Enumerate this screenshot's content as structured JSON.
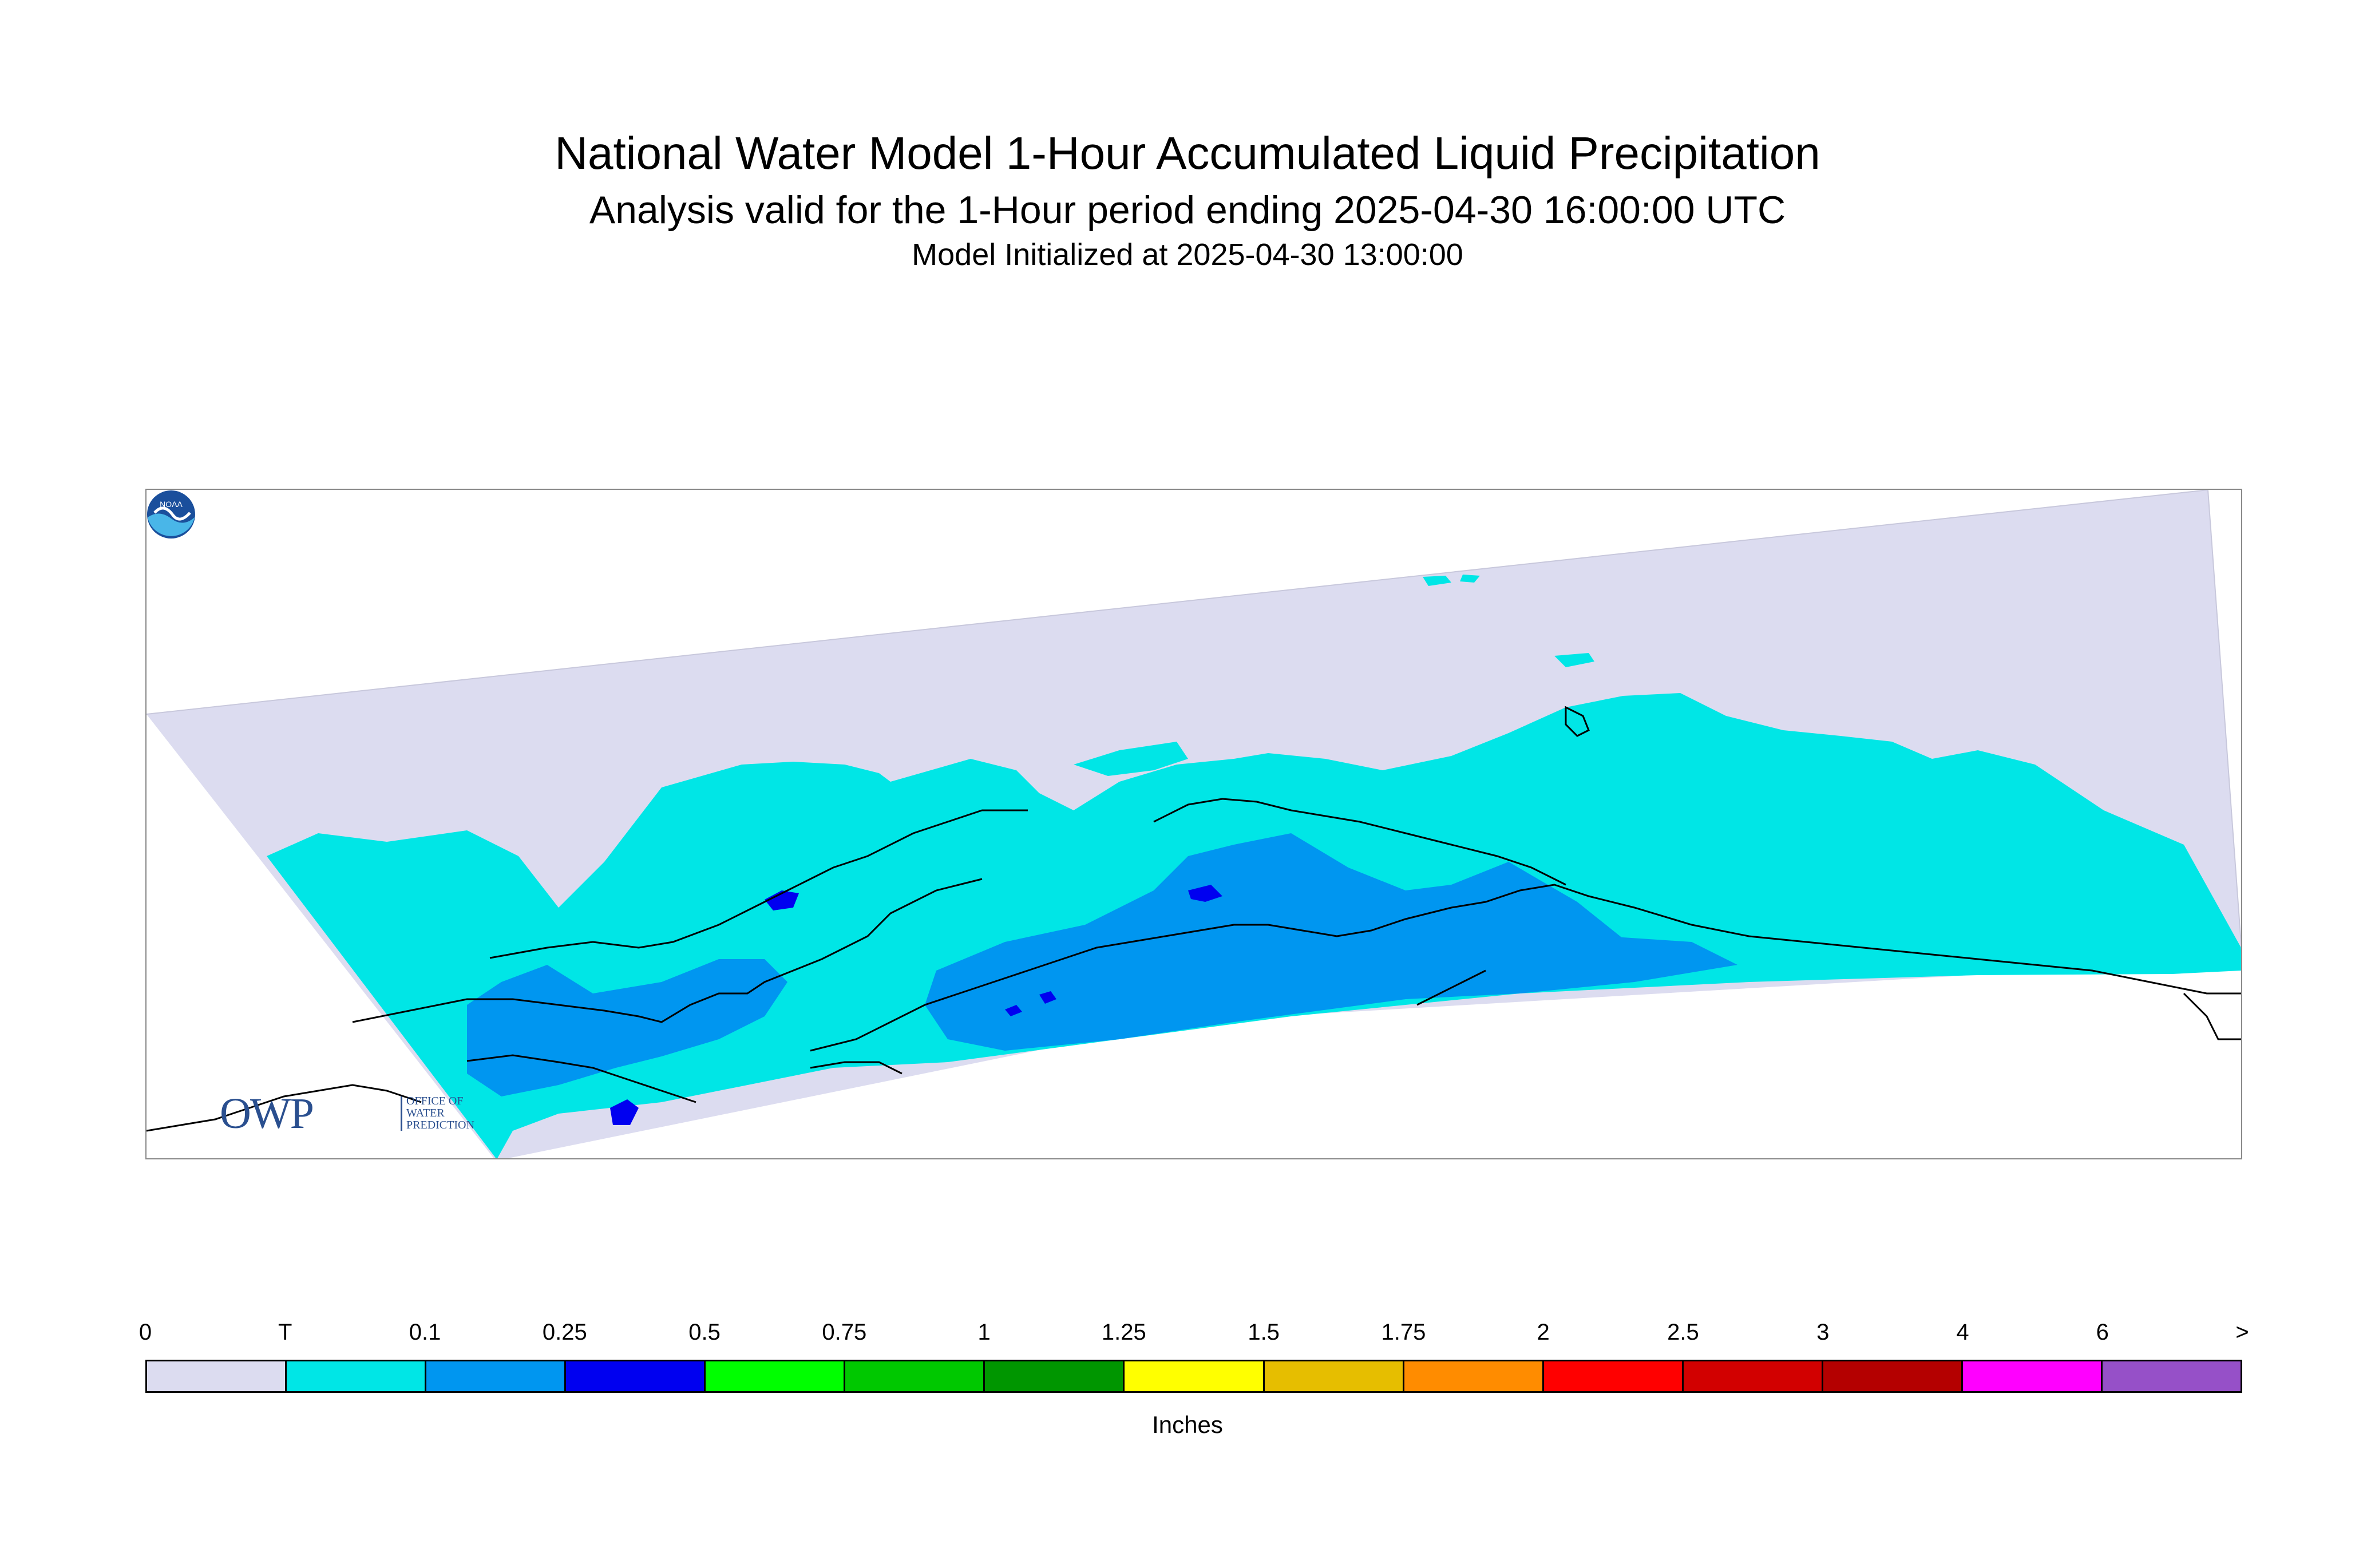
{
  "title": "National Water Model 1-Hour Accumulated Liquid Precipitation",
  "subtitle": "Analysis valid for the 1-Hour period ending 2025-04-30 16:00:00 UTC",
  "init_line": "Model Initialized at 2025-04-30 13:00:00",
  "logos": {
    "owp_big": "OWP",
    "owp_small": [
      "OFFICE OF",
      "WATER",
      "PREDICTION"
    ],
    "noaa": "NOAA"
  },
  "legend": {
    "tick_labels": [
      "0",
      "T",
      "0.1",
      "0.25",
      "0.5",
      "0.75",
      "1",
      "1.25",
      "1.5",
      "1.75",
      "2",
      "2.5",
      "3",
      "4",
      "6",
      ">"
    ],
    "colors": [
      "#dcdcf0",
      "#00e6e6",
      "#0096f0",
      "#0000f0",
      "#00ff00",
      "#00c800",
      "#009600",
      "#ffff00",
      "#e6be00",
      "#ff8c00",
      "#ff0000",
      "#d20000",
      "#b40000",
      "#ff00ff",
      "#9650c8"
    ],
    "units": "Inches"
  },
  "map_colors": {
    "domain": "#dcdcf0",
    "trace": "#00e6e6",
    "light": "#0096f0",
    "heavy": "#0000f0",
    "coast": "#000000"
  }
}
